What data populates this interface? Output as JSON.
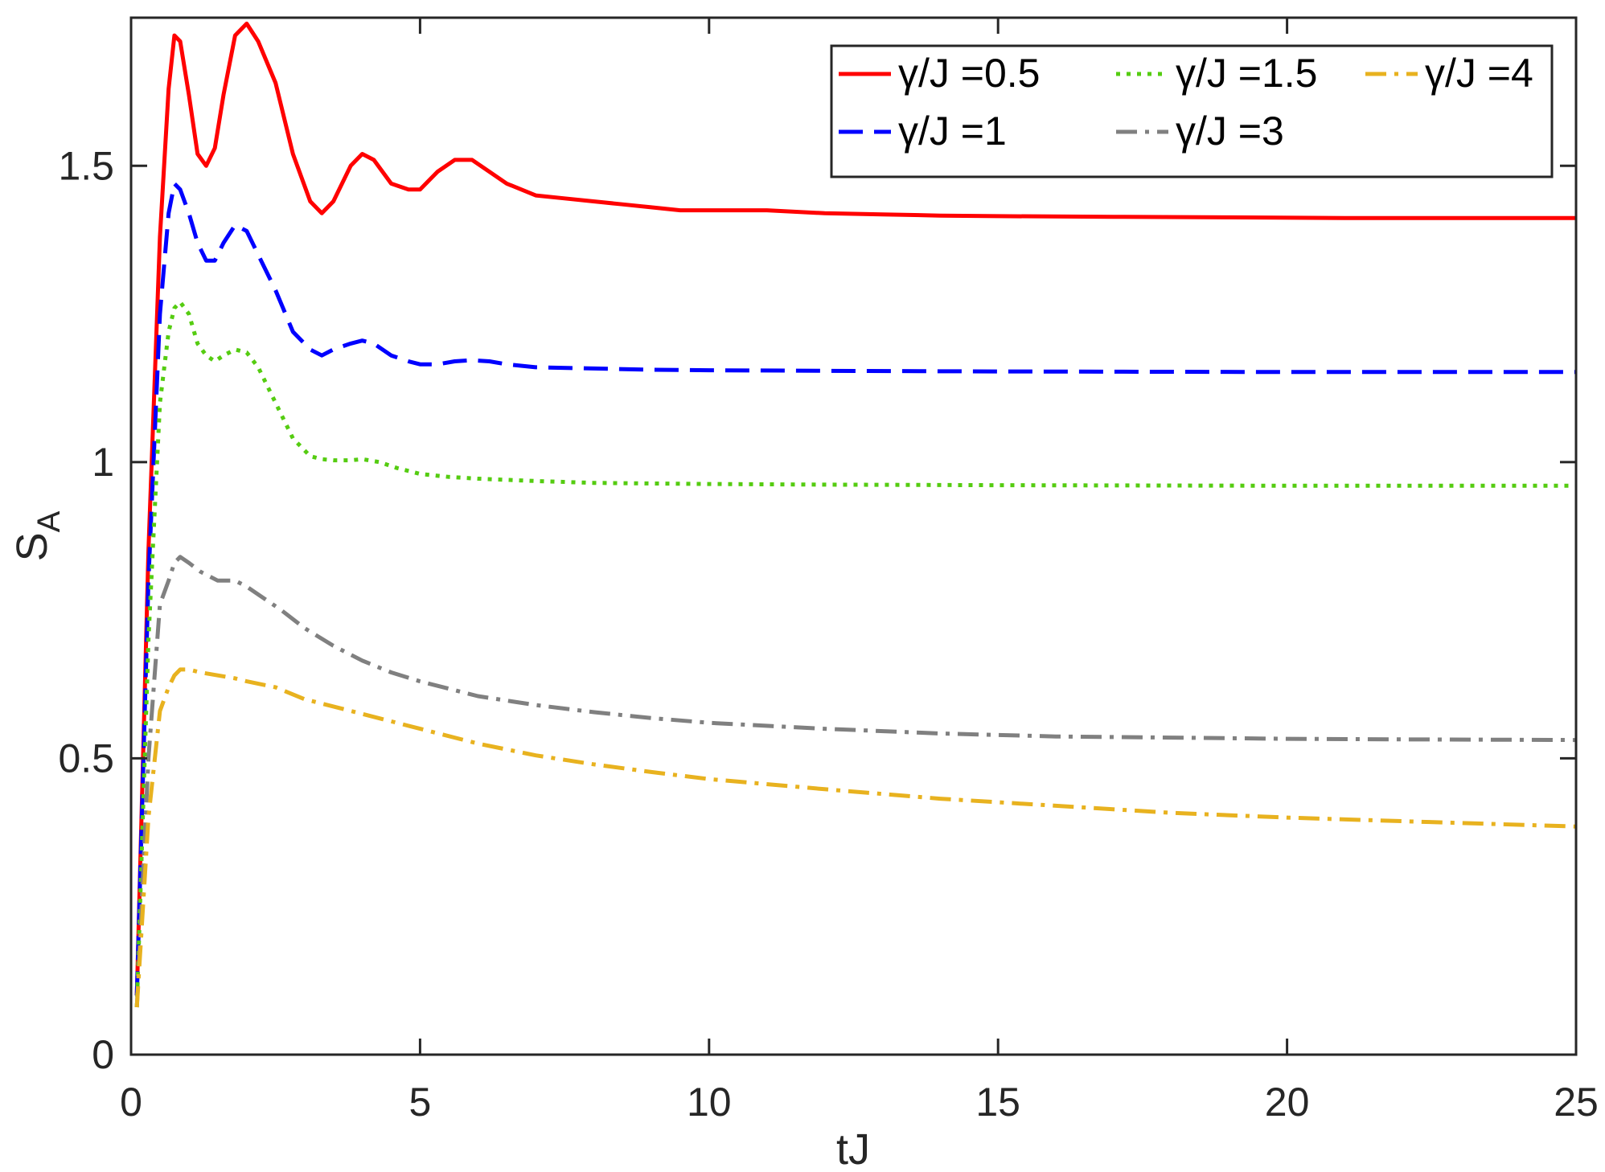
{
  "chart_data": {
    "type": "line",
    "xlabel": "tJ",
    "ylabel": "S",
    "ylabel_subscript": "A",
    "xlim": [
      0,
      25
    ],
    "ylim": [
      0,
      1.5
    ],
    "ylim_top": 1.75,
    "xticks": [
      0,
      5,
      10,
      15,
      20,
      25
    ],
    "xtick_labels": [
      "0",
      "5",
      "10",
      "15",
      "20",
      "25"
    ],
    "yticks": [
      0,
      0.5,
      1,
      1.5
    ],
    "ytick_labels": [
      "0",
      "0.5",
      "1",
      "1.5"
    ],
    "grid": false,
    "legend_position": "top-right",
    "legend_columns": 3,
    "series": [
      {
        "name": "γ/J =0.5",
        "color": "#ff0000",
        "dash": "solid",
        "x": [
          0.1,
          0.3,
          0.5,
          0.65,
          0.75,
          0.85,
          1.0,
          1.15,
          1.3,
          1.45,
          1.6,
          1.8,
          2.0,
          2.2,
          2.5,
          2.8,
          3.1,
          3.3,
          3.5,
          3.8,
          4.0,
          4.2,
          4.5,
          4.8,
          5.0,
          5.3,
          5.6,
          5.9,
          6.2,
          6.5,
          7.0,
          7.5,
          8.0,
          8.5,
          9.0,
          9.5,
          10.0,
          10.5,
          11.0,
          12.0,
          13.0,
          14.0,
          15.0,
          17.0,
          19.0,
          21.0,
          23.0,
          25.0
        ],
        "y": [
          0.1,
          0.85,
          1.38,
          1.63,
          1.72,
          1.71,
          1.62,
          1.52,
          1.5,
          1.53,
          1.62,
          1.72,
          1.74,
          1.71,
          1.64,
          1.52,
          1.44,
          1.42,
          1.44,
          1.5,
          1.52,
          1.51,
          1.47,
          1.46,
          1.46,
          1.49,
          1.51,
          1.51,
          1.49,
          1.47,
          1.45,
          1.445,
          1.44,
          1.435,
          1.43,
          1.425,
          1.425,
          1.425,
          1.425,
          1.42,
          1.418,
          1.416,
          1.415,
          1.414,
          1.413,
          1.412,
          1.412,
          1.412
        ]
      },
      {
        "name": "γ/J =1",
        "color": "#0000ff",
        "dash": "dashed",
        "x": [
          0.1,
          0.3,
          0.5,
          0.65,
          0.75,
          0.85,
          1.0,
          1.15,
          1.3,
          1.45,
          1.6,
          1.8,
          2.0,
          2.2,
          2.5,
          2.8,
          3.1,
          3.3,
          3.5,
          3.8,
          4.0,
          4.2,
          4.5,
          4.8,
          5.0,
          5.3,
          5.6,
          5.9,
          6.2,
          6.5,
          7.0,
          8.0,
          9.0,
          10.0,
          12.0,
          15.0,
          20.0,
          25.0
        ],
        "y": [
          0.1,
          0.8,
          1.25,
          1.42,
          1.47,
          1.46,
          1.42,
          1.37,
          1.34,
          1.34,
          1.37,
          1.4,
          1.39,
          1.35,
          1.29,
          1.22,
          1.19,
          1.18,
          1.19,
          1.2,
          1.205,
          1.2,
          1.18,
          1.17,
          1.165,
          1.165,
          1.17,
          1.172,
          1.17,
          1.165,
          1.16,
          1.158,
          1.156,
          1.155,
          1.154,
          1.153,
          1.152,
          1.152
        ]
      },
      {
        "name": "γ/J =1.5",
        "color": "#55cc11",
        "dash": "dotted",
        "x": [
          0.1,
          0.3,
          0.5,
          0.65,
          0.75,
          0.85,
          1.0,
          1.15,
          1.3,
          1.45,
          1.6,
          1.8,
          2.0,
          2.2,
          2.5,
          2.8,
          3.1,
          3.3,
          3.5,
          3.8,
          4.0,
          4.3,
          4.6,
          5.0,
          5.5,
          6.0,
          7.0,
          8.0,
          10.0,
          12.0,
          15.0,
          20.0,
          25.0
        ],
        "y": [
          0.08,
          0.7,
          1.1,
          1.22,
          1.26,
          1.27,
          1.25,
          1.2,
          1.18,
          1.17,
          1.18,
          1.19,
          1.185,
          1.16,
          1.1,
          1.04,
          1.01,
          1.005,
          1.003,
          1.003,
          1.005,
          1.0,
          0.99,
          0.98,
          0.975,
          0.972,
          0.968,
          0.965,
          0.963,
          0.962,
          0.961,
          0.96,
          0.96
        ]
      },
      {
        "name": "γ/J =3",
        "color": "#808080",
        "dash": "dashdot",
        "x": [
          0.1,
          0.3,
          0.5,
          0.65,
          0.75,
          0.85,
          1.0,
          1.2,
          1.5,
          1.8,
          2.0,
          2.3,
          2.6,
          3.0,
          3.5,
          4.0,
          4.5,
          5.0,
          6.0,
          7.0,
          8.0,
          9.0,
          10.0,
          12.0,
          14.0,
          16.0,
          18.0,
          20.0,
          22.0,
          25.0
        ],
        "y": [
          0.08,
          0.5,
          0.76,
          0.8,
          0.83,
          0.84,
          0.83,
          0.815,
          0.8,
          0.8,
          0.79,
          0.77,
          0.75,
          0.72,
          0.69,
          0.665,
          0.645,
          0.63,
          0.605,
          0.59,
          0.578,
          0.568,
          0.56,
          0.55,
          0.542,
          0.537,
          0.535,
          0.533,
          0.532,
          0.531
        ]
      },
      {
        "name": "γ/J =4",
        "color": "#e8b21f",
        "dash": "dashdot",
        "x": [
          0.1,
          0.3,
          0.5,
          0.65,
          0.75,
          0.85,
          1.0,
          1.2,
          1.5,
          1.8,
          2.0,
          2.5,
          3.0,
          4.0,
          5.0,
          6.0,
          7.0,
          8.0,
          9.0,
          10.0,
          12.0,
          14.0,
          16.0,
          18.0,
          20.0,
          22.0,
          25.0
        ],
        "y": [
          0.08,
          0.4,
          0.58,
          0.62,
          0.64,
          0.65,
          0.65,
          0.645,
          0.64,
          0.635,
          0.63,
          0.62,
          0.6,
          0.575,
          0.55,
          0.525,
          0.505,
          0.49,
          0.477,
          0.465,
          0.448,
          0.432,
          0.42,
          0.408,
          0.4,
          0.394,
          0.385
        ]
      }
    ]
  }
}
